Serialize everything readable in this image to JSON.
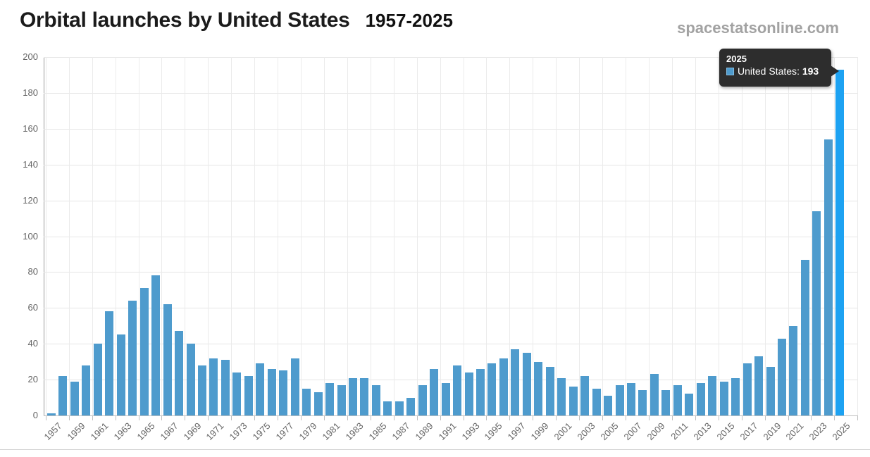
{
  "page": {
    "title": "Orbital launches by United States",
    "title_years": "1957-2025",
    "watermark": "spacestatsonline.com"
  },
  "tooltip": {
    "year": "2025",
    "series": "United States",
    "separator": ": ",
    "value": "193"
  },
  "colors": {
    "bar": "#4e9bcd",
    "bar_highlight": "#1da2f2",
    "swatch_border": "#85bde2",
    "tooltip_bg": "#2d2d2d",
    "tooltip_text": "#ffffff",
    "grid": "#e6e6e6",
    "axis": "#c0c0c0",
    "label": "#666666",
    "title": "#1b1b1b",
    "watermark": "#a2a2a2"
  },
  "chart_data": {
    "type": "bar",
    "title": "Orbital launches by United States 1957-2025",
    "xlabel": "",
    "ylabel": "",
    "ylim": [
      0,
      200
    ],
    "ytick_step": 20,
    "yticks": [
      0,
      20,
      40,
      60,
      80,
      100,
      120,
      140,
      160,
      180,
      200
    ],
    "grid": true,
    "legend_position": "none",
    "highlighted_year": 2025,
    "series_name": "United States",
    "years": [
      1957,
      1958,
      1959,
      1960,
      1961,
      1962,
      1963,
      1964,
      1965,
      1966,
      1967,
      1968,
      1969,
      1970,
      1971,
      1972,
      1973,
      1974,
      1975,
      1976,
      1977,
      1978,
      1979,
      1980,
      1981,
      1982,
      1983,
      1984,
      1985,
      1986,
      1987,
      1988,
      1989,
      1990,
      1991,
      1992,
      1993,
      1994,
      1995,
      1996,
      1997,
      1998,
      1999,
      2000,
      2001,
      2002,
      2003,
      2004,
      2005,
      2006,
      2007,
      2008,
      2009,
      2010,
      2011,
      2012,
      2013,
      2014,
      2015,
      2016,
      2017,
      2018,
      2019,
      2020,
      2021,
      2022,
      2023,
      2024,
      2025
    ],
    "values": [
      1,
      22,
      19,
      28,
      40,
      58,
      45,
      64,
      71,
      78,
      62,
      47,
      40,
      28,
      32,
      31,
      24,
      22,
      29,
      26,
      25,
      32,
      15,
      13,
      18,
      17,
      21,
      21,
      17,
      8,
      8,
      10,
      17,
      26,
      18,
      28,
      24,
      26,
      29,
      32,
      37,
      35,
      30,
      27,
      21,
      16,
      22,
      15,
      11,
      17,
      18,
      14,
      23,
      14,
      17,
      12,
      18,
      22,
      19,
      21,
      29,
      33,
      27,
      43,
      50,
      87,
      114,
      154,
      193
    ],
    "xtick_labels": [
      "1957",
      "1959",
      "1961",
      "1963",
      "1965",
      "1967",
      "1969",
      "1971",
      "1973",
      "1975",
      "1977",
      "1979",
      "1981",
      "1983",
      "1985",
      "1987",
      "1989",
      "1991",
      "1993",
      "1995",
      "1997",
      "1999",
      "2001",
      "2003",
      "2005",
      "2007",
      "2009",
      "2011",
      "2013",
      "2015",
      "2017",
      "2019",
      "2021",
      "2023",
      "2025"
    ]
  }
}
